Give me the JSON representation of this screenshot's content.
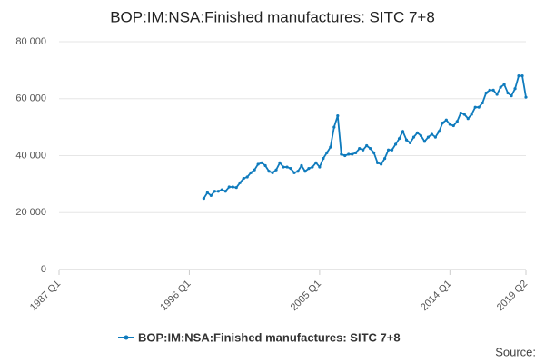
{
  "chart_data": {
    "type": "line",
    "title": "BOP:IM:NSA:Finished manufactures: SITC 7+8",
    "source": "Source:",
    "categories": [
      "1987 Q1",
      null,
      null,
      null,
      null,
      null,
      null,
      null,
      null,
      null,
      null,
      null,
      null,
      null,
      null,
      null,
      null,
      null,
      null,
      null,
      null,
      null,
      null,
      null,
      null,
      null,
      null,
      null,
      null,
      null,
      null,
      null,
      null,
      null,
      null,
      null,
      "1996 Q1",
      null,
      null,
      null,
      null,
      null,
      null,
      null,
      null,
      null,
      null,
      null,
      null,
      null,
      null,
      null,
      null,
      null,
      null,
      null,
      null,
      null,
      null,
      null,
      null,
      null,
      null,
      null,
      null,
      null,
      null,
      null,
      null,
      null,
      null,
      null,
      "2005 Q1",
      null,
      null,
      null,
      null,
      null,
      null,
      null,
      null,
      null,
      null,
      null,
      null,
      null,
      null,
      null,
      null,
      null,
      null,
      null,
      null,
      null,
      null,
      null,
      null,
      null,
      null,
      null,
      null,
      null,
      null,
      null,
      null,
      null,
      null,
      null,
      "2014 Q1",
      null,
      null,
      null,
      null,
      null,
      null,
      null,
      null,
      null,
      null,
      null,
      null,
      null,
      null,
      null,
      null,
      null,
      null,
      null,
      null,
      "2019 Q2"
    ],
    "series": [
      {
        "name": "BOP:IM:NSA:Finished manufactures: SITC 7+8",
        "color": "#0f7bbd",
        "values": [
          null,
          null,
          null,
          null,
          null,
          null,
          null,
          null,
          null,
          null,
          null,
          null,
          null,
          null,
          null,
          null,
          null,
          null,
          null,
          null,
          null,
          null,
          null,
          null,
          null,
          null,
          null,
          null,
          null,
          null,
          null,
          null,
          null,
          null,
          null,
          null,
          null,
          null,
          null,
          null,
          25000,
          27000,
          26000,
          27500,
          27500,
          28000,
          27500,
          29000,
          29000,
          28800,
          30500,
          32000,
          32500,
          34000,
          35000,
          37000,
          37500,
          36500,
          34500,
          34000,
          35000,
          37500,
          36000,
          36000,
          35500,
          34000,
          34500,
          36500,
          34500,
          35500,
          36000,
          37500,
          36000,
          39000,
          41000,
          43000,
          50000,
          54000,
          40500,
          40000,
          40500,
          40500,
          41000,
          42500,
          42000,
          43500,
          42500,
          41000,
          37500,
          37000,
          39000,
          42000,
          42000,
          44000,
          46000,
          48500,
          45500,
          44500,
          46500,
          48000,
          47000,
          45000,
          46500,
          47500,
          46500,
          48500,
          51500,
          52500,
          51000,
          50500,
          52000,
          55000,
          54500,
          53000,
          54500,
          57000,
          57000,
          58500,
          62000,
          63000,
          63000,
          61500,
          64000,
          65000,
          62000,
          61000,
          63500,
          68000,
          68000,
          60500
        ]
      }
    ],
    "ylim": [
      0,
      80000
    ],
    "yticks": [
      0,
      {
        "value": 20000,
        "label": "20 000"
      },
      {
        "value": 40000,
        "label": "40 000"
      },
      {
        "value": 60000,
        "label": "60 000"
      },
      {
        "value": 80000,
        "label": "80 000"
      }
    ],
    "grid": true
  }
}
